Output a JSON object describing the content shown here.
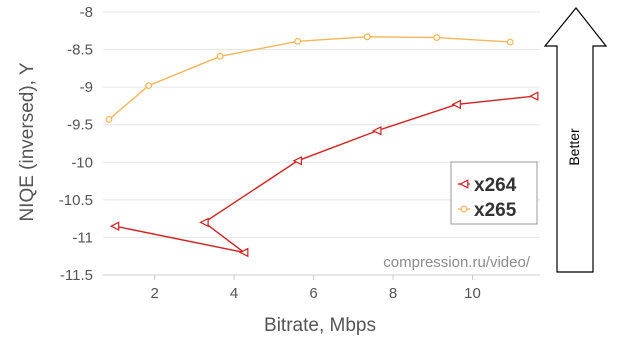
{
  "chart_data": {
    "type": "line",
    "xlabel": "Bitrate, Mbps",
    "ylabel": "NIQE (inversed), Y",
    "xlim": [
      0.7,
      11.7
    ],
    "ylim": [
      -11.5,
      -8
    ],
    "x_ticks": [
      2,
      4,
      6,
      8,
      10
    ],
    "y_ticks": [
      -8,
      -8.5,
      -9,
      -9.5,
      -10,
      -10.5,
      -11,
      -11.5
    ],
    "grid": "horizontal",
    "legend_position": "right",
    "series": [
      {
        "name": "x264",
        "color": "#d42020",
        "marker": "triangle-left",
        "x": [
          1.0,
          4.25,
          3.25,
          5.6,
          7.6,
          9.6,
          11.55
        ],
        "y": [
          -10.85,
          -11.2,
          -10.8,
          -9.98,
          -9.58,
          -9.23,
          -9.12
        ]
      },
      {
        "name": "x265",
        "color": "#f5b55a",
        "marker": "circle",
        "x": [
          0.85,
          1.85,
          3.65,
          5.6,
          7.35,
          9.1,
          10.95
        ],
        "y": [
          -9.43,
          -8.98,
          -8.59,
          -8.39,
          -8.33,
          -8.34,
          -8.4
        ]
      }
    ],
    "watermark": "compression.ru/video/",
    "annotation": "Better"
  }
}
